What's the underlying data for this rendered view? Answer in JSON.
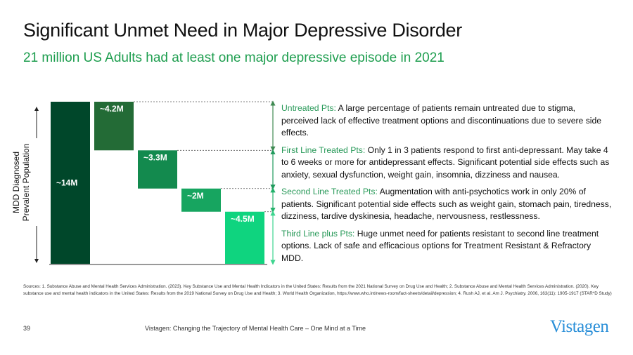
{
  "title": "Significant Unmet Need in Major Depressive Disorder",
  "subtitle": "21 million US Adults had at least one major depressive episode in 2021",
  "chart_data": {
    "type": "bar",
    "subtype": "waterfall",
    "ylabel": "MDD Diagnosed Prevalent Population",
    "unit": "M",
    "total": {
      "value": 14,
      "label": "~14M",
      "color": "#00472a"
    },
    "segments": [
      {
        "value": 4.2,
        "label": "~4.2M",
        "color": "#236b36"
      },
      {
        "value": 3.3,
        "label": "~3.3M",
        "color": "#138a4e"
      },
      {
        "value": 2,
        "label": "~2M",
        "color": "#17a560"
      },
      {
        "value": 4.5,
        "label": "~4.5M",
        "color": "#0fd47f"
      }
    ],
    "ylim": [
      0,
      14
    ],
    "grid": false
  },
  "notes": [
    {
      "heading": "Untreated Pts:",
      "text": " A large percentage of patients remain untreated due to stigma, perceived lack of effective treatment options and discontinuations due to severe side effects."
    },
    {
      "heading": "First Line Treated Pts:",
      "text": " Only 1 in 3 patients respond to first anti-depressant. May take 4 to 6 weeks or more for antidepressant effects. Significant potential side effects such as anxiety, sexual dysfunction, weight gain, insomnia, dizziness and nausea."
    },
    {
      "heading": "Second Line Treated Pts:",
      "text": " Augmentation with anti-psychotics work in only 20% of patients. Significant potential side effects such as weight gain, stomach pain, tiredness, dizziness, tardive dyskinesia, headache, nervousness, restlessness."
    },
    {
      "heading": "Third Line plus Pts:",
      "text": " Huge unmet need for patients resistant to second line treatment options. Lack of safe and efficacious options for Treatment Resistant & Refractory MDD."
    }
  ],
  "sources": "Sources: 1. Substance Abuse and Mental Health Services Administration. (2023). Key Substance Use and Mental Health Indicators in the United States: Results from the 2021 National Survey on Drug Use and Health; 2. Substance Abuse and Mental Health Services Administration. (2020). Key substance use and mental health indicators in the United States: Results from the 2019 National Survey on Drug Use and Health; 3. World Health Organization, https://www.who.int/news-room/fact-sheets/detail/depression; 4. Rush AJ, et al. Am J. Psychiatry. 2006, 163(11): 1905-1917 (STAR*D Study)",
  "footer": {
    "page_number": "39",
    "tagline": "Vistagen: Changing the Trajectory of Mental Health Care – One Mind at a Time",
    "logo": "Vistagen"
  },
  "colors": {
    "accent": "#1e9e4f",
    "logo": "#2a8fd8"
  }
}
